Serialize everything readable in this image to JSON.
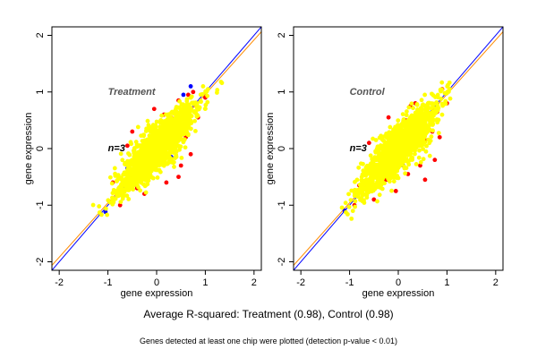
{
  "captions": {
    "summary": "Average R-squared: Treatment (0.98), Control (0.98)",
    "note": "Genes detected at least one chip were plotted (detection p-value < 0.01)"
  },
  "colors": {
    "identity_line": "#0000ff",
    "fit_line": "#ff8c00",
    "main_points": "#ffff00",
    "high_points": "#ff0000",
    "low_points": "#0000ff",
    "annotation_text": "#555555"
  },
  "chart_data": [
    {
      "type": "scatter",
      "panel_label": "Treatment",
      "n_label": "n=3",
      "xlabel": "gene expression",
      "ylabel": "gene expression",
      "xlim": [
        -2.15,
        2.15
      ],
      "ylim": [
        -2.15,
        2.15
      ],
      "xticks": [
        -2,
        -1,
        0,
        1,
        2
      ],
      "yticks": [
        -2,
        -1,
        0,
        1,
        2
      ],
      "reference_line": {
        "slope": 1.0,
        "intercept": 0.0
      },
      "fit_line": {
        "slope": 0.96,
        "intercept": 0.0
      },
      "point_cloud": {
        "x_range": [
          -1.15,
          1.25
        ],
        "spread": 0.12
      },
      "red_points": [
        [
          0.35,
          0.45
        ],
        [
          -0.1,
          0.3
        ],
        [
          0.45,
          0.85
        ],
        [
          0.5,
          -0.3
        ],
        [
          0.6,
          0.2
        ],
        [
          -0.9,
          -0.6
        ],
        [
          0.2,
          -0.6
        ],
        [
          -0.6,
          0.05
        ],
        [
          0.7,
          -0.1
        ],
        [
          -0.25,
          -0.8
        ],
        [
          0.75,
          1.0
        ],
        [
          -0.5,
          0.3
        ],
        [
          0.3,
          0.55
        ],
        [
          0.45,
          -0.5
        ],
        [
          0.85,
          0.55
        ],
        [
          -0.75,
          -1.0
        ],
        [
          -0.05,
          0.7
        ],
        [
          0.55,
          0.35
        ],
        [
          1.0,
          0.9
        ],
        [
          -0.4,
          -0.7
        ],
        [
          0.15,
          0.6
        ],
        [
          0.4,
          0.15
        ],
        [
          0.1,
          -0.2
        ],
        [
          0.65,
          0.95
        ]
      ],
      "blue_points": [
        [
          -1.15,
          -1.15
        ],
        [
          0.7,
          1.1
        ],
        [
          0.55,
          0.95
        ],
        [
          -0.6,
          -0.35
        ],
        [
          0.35,
          0.25
        ],
        [
          -1.05,
          -1.12
        ],
        [
          0.3,
          -0.15
        ]
      ]
    },
    {
      "type": "scatter",
      "panel_label": "Control",
      "n_label": "n=3",
      "xlabel": "gene expression",
      "ylabel": "gene expression",
      "xlim": [
        -2.15,
        2.15
      ],
      "ylim": [
        -2.15,
        2.15
      ],
      "xticks": [
        -2,
        -1,
        0,
        1,
        2
      ],
      "yticks": [
        -2,
        -1,
        0,
        1,
        2
      ],
      "reference_line": {
        "slope": 1.0,
        "intercept": 0.0
      },
      "fit_line": {
        "slope": 0.96,
        "intercept": 0.0
      },
      "point_cloud": {
        "x_range": [
          -1.1,
          1.2
        ],
        "spread": 0.12
      },
      "red_points": [
        [
          0.15,
          0.5
        ],
        [
          0.35,
          0.8
        ],
        [
          -0.2,
          0.55
        ],
        [
          0.55,
          -0.55
        ],
        [
          0.75,
          -0.2
        ],
        [
          0.85,
          0.2
        ],
        [
          -0.5,
          -0.9
        ],
        [
          0.6,
          0.55
        ],
        [
          -0.8,
          -0.65
        ],
        [
          0.4,
          0.1
        ],
        [
          -0.25,
          -0.55
        ],
        [
          0.9,
          1.05
        ],
        [
          0.2,
          -0.45
        ],
        [
          -0.6,
          0.1
        ],
        [
          0.7,
          0.3
        ],
        [
          0.45,
          -0.3
        ],
        [
          -0.9,
          -1.0
        ],
        [
          0.1,
          0.3
        ],
        [
          0.25,
          0.75
        ],
        [
          1.0,
          0.8
        ],
        [
          -0.05,
          -0.75
        ],
        [
          0.55,
          0.15
        ],
        [
          0.3,
          0.45
        ],
        [
          0.8,
          0.65
        ]
      ],
      "blue_points": [
        [
          -1.1,
          -1.1
        ],
        [
          0.05,
          0.35
        ],
        [
          0.1,
          -0.3
        ],
        [
          -0.4,
          -0.2
        ],
        [
          0.5,
          0.45
        ]
      ]
    }
  ]
}
